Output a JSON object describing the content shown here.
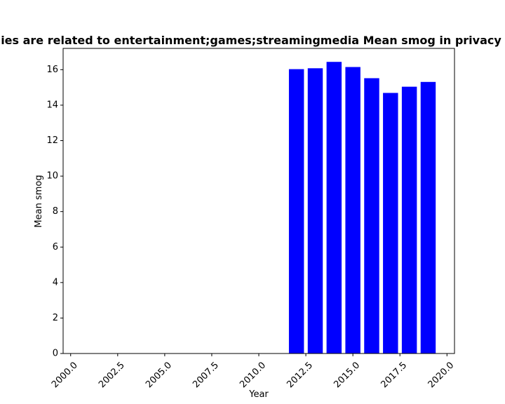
{
  "chart_data": {
    "type": "bar",
    "title": "ies are related to entertainment;games;streamingmedia Mean smog in privacy",
    "xlabel": "Year",
    "ylabel": "Mean smog",
    "x": [
      2012,
      2013,
      2014,
      2015,
      2016,
      2017,
      2018,
      2019
    ],
    "values": [
      16.03,
      16.08,
      16.44,
      16.15,
      15.52,
      14.69,
      15.04,
      15.31
    ],
    "xlim": [
      1999.6,
      2020.4
    ],
    "ylim": [
      0,
      17.2
    ],
    "xticks": [
      {
        "value": 2000.0,
        "label": "2000.0"
      },
      {
        "value": 2002.5,
        "label": "2002.5"
      },
      {
        "value": 2005.0,
        "label": "2005.0"
      },
      {
        "value": 2007.5,
        "label": "2007.5"
      },
      {
        "value": 2010.0,
        "label": "2010.0"
      },
      {
        "value": 2012.5,
        "label": "2012.5"
      },
      {
        "value": 2015.0,
        "label": "2015.0"
      },
      {
        "value": 2017.5,
        "label": "2017.5"
      },
      {
        "value": 2020.0,
        "label": "2020.0"
      }
    ],
    "yticks": [
      {
        "value": 0,
        "label": "0"
      },
      {
        "value": 2,
        "label": "2"
      },
      {
        "value": 4,
        "label": "4"
      },
      {
        "value": 6,
        "label": "6"
      },
      {
        "value": 8,
        "label": "8"
      },
      {
        "value": 10,
        "label": "10"
      },
      {
        "value": 12,
        "label": "12"
      },
      {
        "value": 14,
        "label": "14"
      },
      {
        "value": 16,
        "label": "16"
      }
    ],
    "bar_color": "#0000ff",
    "grid": false,
    "legend": "none"
  }
}
